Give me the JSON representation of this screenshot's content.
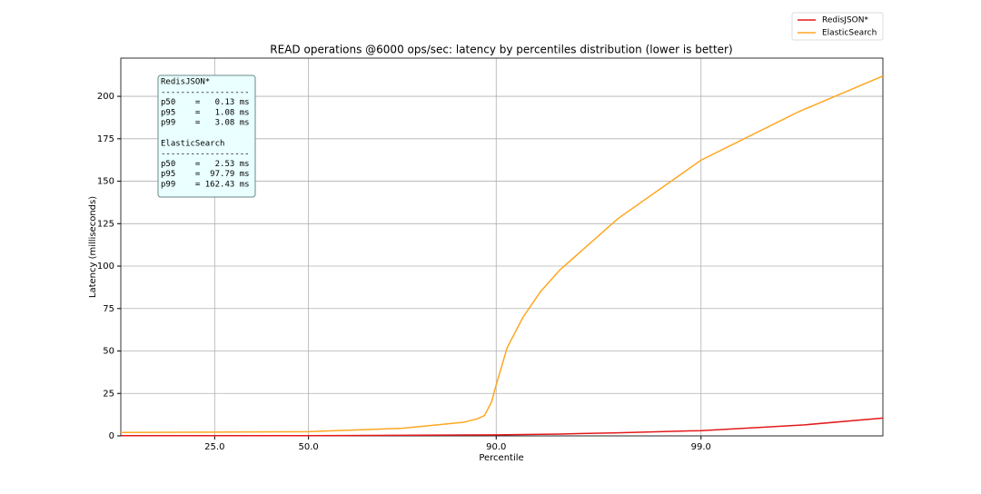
{
  "chart_data": {
    "type": "line",
    "title": "READ operations @6000 ops/sec: latency by percentiles distribution (lower is better)",
    "x_label": "Percentile",
    "y_label": "Latency (milliseconds)",
    "x_scale": "logit",
    "xlim": [
      10,
      99.88
    ],
    "xticks": [
      {
        "value": 25,
        "label": "25.0"
      },
      {
        "value": 50,
        "label": "50.0"
      },
      {
        "value": 90,
        "label": "90.0"
      },
      {
        "value": 99,
        "label": "99.0"
      }
    ],
    "ylim": [
      0,
      222.5
    ],
    "yticks": [
      0,
      25,
      50,
      75,
      100,
      125,
      150,
      175,
      200
    ],
    "grid": true,
    "legend": "top-right",
    "series": [
      {
        "name": "RedisJSON*",
        "color": "#e41a1c",
        "x": [
          10,
          50,
          90,
          95,
          97.4,
          99,
          99.5,
          99.7,
          99.88
        ],
        "values": [
          0.1,
          0.13,
          0.6,
          1.1,
          1.8,
          3.1,
          5,
          6.5,
          10.5
        ]
      },
      {
        "name": "ElasticSearch",
        "color": "#ffa620",
        "x": [
          10,
          25,
          50,
          75,
          86,
          87.8,
          88.7,
          89.5,
          90,
          91.1,
          92.5,
          93.8,
          95,
          97.4,
          99,
          99.68,
          99.88
        ],
        "values": [
          2,
          2.2,
          2.5,
          4.5,
          8,
          10,
          12,
          20,
          30,
          52,
          70,
          85,
          97.8,
          128,
          162.4,
          191,
          212
        ]
      }
    ],
    "annotation": [
      "RedisJSON*",
      "------------------",
      "p50    =   0.13 ms",
      "p95    =   1.08 ms",
      "p99    =   3.08 ms",
      "",
      "ElasticSearch",
      "------------------",
      "p50    =   2.53 ms",
      "p95    =  97.79 ms",
      "p99    = 162.43 ms"
    ]
  }
}
